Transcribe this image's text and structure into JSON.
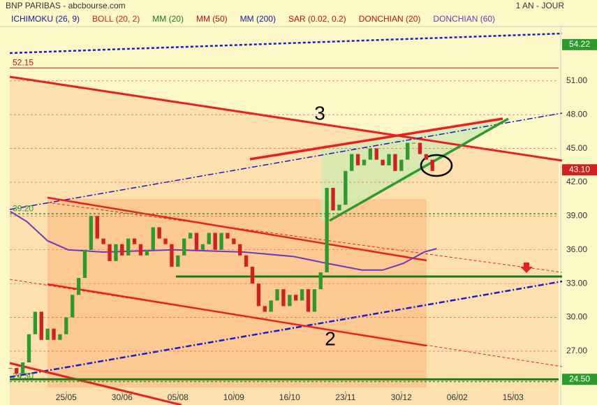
{
  "header": {
    "title": "BNP PARIBAS - abcbourse.com",
    "period": "1 AN - JOUR"
  },
  "indicators": [
    {
      "name": "ICHIMOKU (26, 9)",
      "color": "#1a1aa8"
    },
    {
      "name": "BOLL (20, 2)",
      "color": "#d02020"
    },
    {
      "name": "MM (20)",
      "color": "#1a7a1a"
    },
    {
      "name": "MM (50)",
      "color": "#c01010"
    },
    {
      "name": "MM (200)",
      "color": "#1a1aa8"
    },
    {
      "name": "SAR (0.02, 0.2)",
      "color": "#c01010"
    },
    {
      "name": "DONCHIAN (20)",
      "color": "#c01010"
    },
    {
      "name": "DONCHIAN (60)",
      "color": "#6a3ac0"
    }
  ],
  "annotations": [
    "3",
    "2"
  ],
  "chart_data": {
    "type": "candlestick",
    "ylim": [
      23.15,
      55.7
    ],
    "xlim": [
      -32,
      238
    ],
    "yticks": [
      {
        "value": 27,
        "label": "27.00"
      },
      {
        "value": 30,
        "label": "30.00"
      },
      {
        "value": 33,
        "label": "33.00"
      },
      {
        "value": 36,
        "label": "36.00"
      },
      {
        "value": 39,
        "label": "39.00"
      },
      {
        "value": 42,
        "label": "42.00"
      },
      {
        "value": 45,
        "label": "45.00"
      },
      {
        "value": 48,
        "label": "48.00"
      },
      {
        "value": 51,
        "label": "51.00"
      }
    ],
    "xticks": [
      {
        "value": 0,
        "label": "25/05"
      },
      {
        "value": 27,
        "label": "30/06"
      },
      {
        "value": 54,
        "label": "05/08"
      },
      {
        "value": 81,
        "label": "10/09"
      },
      {
        "value": 108,
        "label": "16/10"
      },
      {
        "value": 135,
        "label": "23/11"
      },
      {
        "value": 162,
        "label": "30/12"
      },
      {
        "value": 189,
        "label": "06/02"
      },
      {
        "value": 216,
        "label": "15/03"
      }
    ],
    "x": [
      -27,
      -24,
      -21,
      -18,
      -15,
      -12,
      -9,
      -6,
      -3,
      0,
      3,
      6,
      9,
      12,
      15,
      18,
      21,
      24,
      27,
      30,
      33,
      36,
      39,
      42,
      45,
      48,
      51,
      54,
      57,
      60,
      63,
      66,
      69,
      72,
      75,
      78,
      81,
      84,
      87,
      90,
      93,
      96,
      99,
      102,
      105,
      108,
      111,
      114,
      117,
      120,
      123,
      126,
      129,
      132,
      135,
      138,
      141,
      144,
      147,
      150,
      153,
      156,
      159,
      162,
      165,
      168,
      171,
      174,
      177
    ],
    "close": [
      25.5,
      25,
      26,
      28.5,
      30.5,
      28,
      29,
      28,
      28.5,
      30,
      32,
      33.5,
      36,
      39,
      37,
      36.5,
      35,
      36.5,
      35.5,
      37,
      36.5,
      35.5,
      36,
      38,
      37,
      36.5,
      34.5,
      35.5,
      37,
      37.5,
      36,
      36.5,
      37.5,
      36,
      37.5,
      37,
      36.5,
      35.5,
      34.5,
      33,
      31,
      30.5,
      31.5,
      32.5,
      31,
      32,
      31.5,
      32.5,
      30.5,
      32.5,
      34,
      41.5,
      39.5,
      40,
      43,
      44.5,
      43.5,
      44,
      45,
      44,
      43.5,
      44.5,
      43,
      44,
      45.5,
      45.5,
      44.5,
      44,
      43
    ],
    "up_color": "#2e9a2e",
    "down_color": "#d02020",
    "ma": {
      "name": "MM (200)",
      "color": "#6a3ac0",
      "x": [
        -27,
        -19,
        -9,
        1,
        18,
        52,
        86,
        110,
        126,
        143,
        153,
        163,
        173,
        179
      ],
      "values": [
        39.4,
        38.5,
        36.8,
        36,
        35.8,
        36,
        35.8,
        35.4,
        34.8,
        34.2,
        34.2,
        34.8,
        35.8,
        36.1
      ]
    },
    "levels": [
      {
        "value": 52.15,
        "label": "52.15",
        "color": "#c01010"
      },
      {
        "value": 39.2,
        "label": "39.20",
        "color": "#2e9a2e"
      },
      {
        "value": 24.3,
        "label": "24.30",
        "color": "#2e9a2e"
      }
    ],
    "price_tags": [
      {
        "value": 54.22,
        "label": "54.22",
        "color": "#2e9a2e"
      },
      {
        "value": 43.1,
        "label": "43.10",
        "color": "#d02020"
      },
      {
        "value": 24.5,
        "label": "24.50",
        "color": "#2e9a2e"
      }
    ]
  }
}
